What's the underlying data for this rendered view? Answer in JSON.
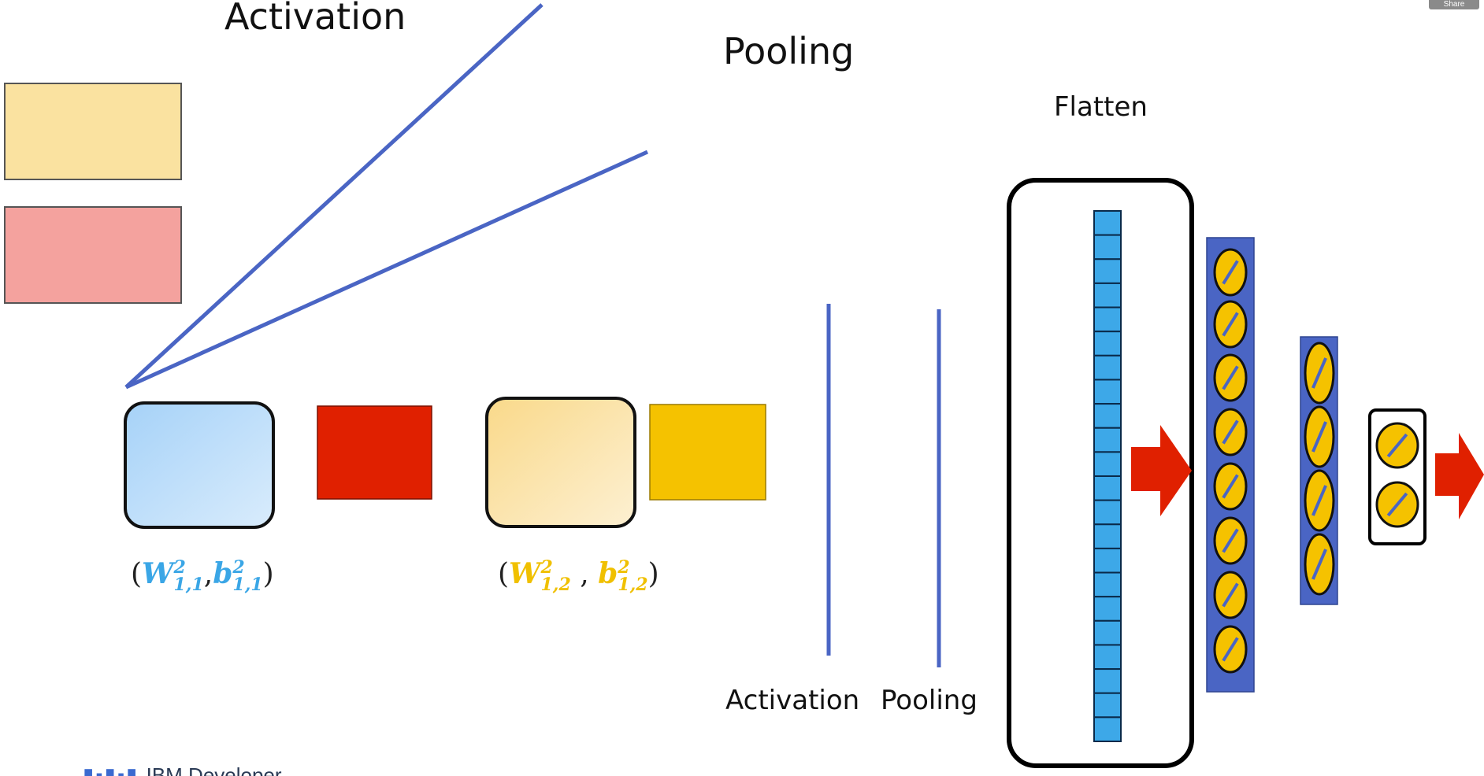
{
  "labels": {
    "activation_top": "Activation",
    "pooling_top": "Pooling",
    "flatten": "Flatten",
    "activation_bottom": "Activation",
    "pooling_bottom": "Pooling"
  },
  "formula1": {
    "w": "W",
    "b": "b",
    "sup": "2",
    "sub": "1,1"
  },
  "formula2": {
    "w": "W",
    "b": "b",
    "sup": "2",
    "sub": "1,2"
  },
  "share_label": "Share",
  "brand": {
    "text": "IBM Developer"
  },
  "colors": {
    "line_blue": "#4a65c4",
    "yellow": "#f5c200",
    "red": "#e02000",
    "cell_blue": "#3da8e8",
    "formula1": "#3aa6e6",
    "formula2": "#f0c000"
  }
}
